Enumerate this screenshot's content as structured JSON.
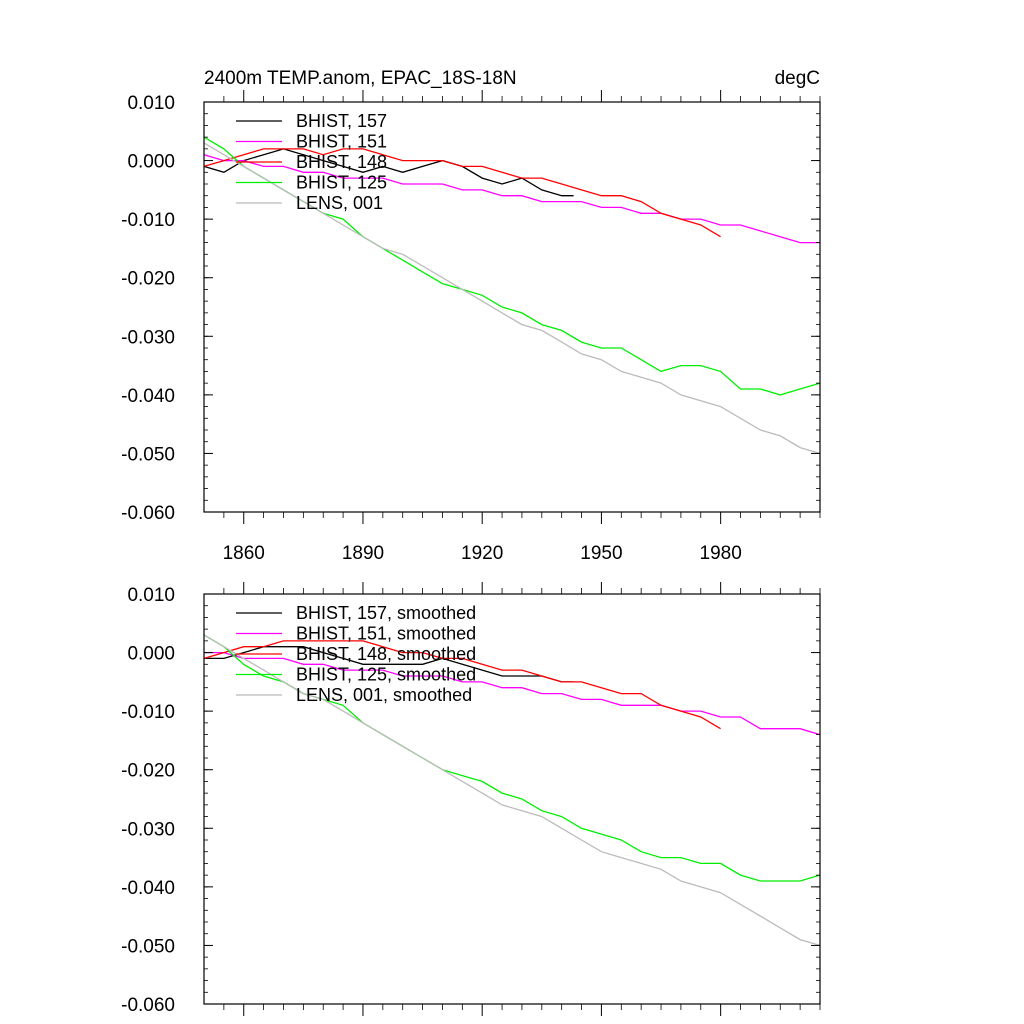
{
  "chart_data": [
    {
      "type": "line",
      "title": "2400m TEMP.anom, EPAC_18S-18N",
      "units": "degC",
      "xlim": [
        1850,
        2005
      ],
      "ylim": [
        -0.06,
        0.01
      ],
      "xticks": [
        1860,
        1890,
        1920,
        1950,
        1980
      ],
      "xtick_labels": [
        "1860",
        "1890",
        "1920",
        "1950",
        "1980"
      ],
      "yticks": [
        0.01,
        0.0,
        -0.01,
        -0.02,
        -0.03,
        -0.04,
        -0.05,
        -0.06
      ],
      "ytick_labels": [
        "0.010",
        "0.000",
        "-0.010",
        "-0.020",
        "-0.030",
        "-0.040",
        "-0.050",
        "-0.060"
      ],
      "legend_position": "top-left",
      "series": [
        {
          "name": "BHIST, 157",
          "color": "#000000",
          "x": [
            1850,
            1855,
            1860,
            1865,
            1870,
            1875,
            1880,
            1885,
            1890,
            1895,
            1900,
            1905,
            1910,
            1915,
            1920,
            1925,
            1930,
            1935,
            1940,
            1943
          ],
          "y": [
            -0.001,
            -0.002,
            0.0,
            0.001,
            0.002,
            0.001,
            0.0,
            -0.001,
            -0.002,
            -0.001,
            -0.002,
            -0.001,
            0.0,
            -0.001,
            -0.003,
            -0.004,
            -0.003,
            -0.005,
            -0.006,
            -0.006
          ]
        },
        {
          "name": "BHIST, 151",
          "color": "#ff00ff",
          "x": [
            1850,
            1855,
            1860,
            1865,
            1870,
            1875,
            1880,
            1885,
            1890,
            1895,
            1900,
            1905,
            1910,
            1915,
            1920,
            1925,
            1930,
            1935,
            1940,
            1945,
            1950,
            1955,
            1960,
            1965,
            1970,
            1975,
            1980,
            1985,
            1990,
            1995,
            2000,
            2005
          ],
          "y": [
            0.001,
            0.0,
            0.0,
            -0.001,
            -0.001,
            -0.002,
            -0.002,
            -0.003,
            -0.003,
            -0.003,
            -0.004,
            -0.004,
            -0.004,
            -0.005,
            -0.005,
            -0.006,
            -0.006,
            -0.007,
            -0.007,
            -0.007,
            -0.008,
            -0.008,
            -0.009,
            -0.009,
            -0.01,
            -0.01,
            -0.011,
            -0.011,
            -0.012,
            -0.013,
            -0.014,
            -0.014
          ]
        },
        {
          "name": "BHIST, 148",
          "color": "#ff0000",
          "x": [
            1850,
            1855,
            1860,
            1865,
            1870,
            1875,
            1880,
            1885,
            1890,
            1895,
            1900,
            1905,
            1910,
            1915,
            1920,
            1925,
            1930,
            1935,
            1940,
            1945,
            1950,
            1955,
            1960,
            1965,
            1970,
            1975,
            1980
          ],
          "y": [
            -0.001,
            0.0,
            0.001,
            0.002,
            0.002,
            0.002,
            0.001,
            0.002,
            0.002,
            0.001,
            0.0,
            0.0,
            0.0,
            -0.001,
            -0.001,
            -0.002,
            -0.003,
            -0.003,
            -0.004,
            -0.005,
            -0.006,
            -0.006,
            -0.007,
            -0.009,
            -0.01,
            -0.011,
            -0.013
          ]
        },
        {
          "name": "BHIST, 125",
          "color": "#00ee00",
          "x": [
            1850,
            1855,
            1860,
            1865,
            1870,
            1875,
            1880,
            1885,
            1890,
            1895,
            1900,
            1905,
            1910,
            1915,
            1920,
            1925,
            1930,
            1935,
            1940,
            1945,
            1950,
            1955,
            1960,
            1965,
            1970,
            1975,
            1980,
            1985,
            1990,
            1995,
            2000,
            2005
          ],
          "y": [
            0.004,
            0.002,
            -0.001,
            -0.003,
            -0.005,
            -0.007,
            -0.009,
            -0.01,
            -0.013,
            -0.015,
            -0.017,
            -0.019,
            -0.021,
            -0.022,
            -0.023,
            -0.025,
            -0.026,
            -0.028,
            -0.029,
            -0.031,
            -0.032,
            -0.032,
            -0.034,
            -0.036,
            -0.035,
            -0.035,
            -0.036,
            -0.039,
            -0.039,
            -0.04,
            -0.039,
            -0.038
          ]
        },
        {
          "name": "LENS, 001",
          "color": "#bbbbbb",
          "x": [
            1850,
            1855,
            1860,
            1865,
            1870,
            1875,
            1880,
            1885,
            1890,
            1895,
            1900,
            1905,
            1910,
            1915,
            1920,
            1925,
            1930,
            1935,
            1940,
            1945,
            1950,
            1955,
            1960,
            1965,
            1970,
            1975,
            1980,
            1985,
            1990,
            1995,
            2000,
            2005
          ],
          "y": [
            0.003,
            0.001,
            -0.001,
            -0.003,
            -0.005,
            -0.007,
            -0.009,
            -0.011,
            -0.013,
            -0.015,
            -0.016,
            -0.018,
            -0.02,
            -0.022,
            -0.024,
            -0.026,
            -0.028,
            -0.029,
            -0.031,
            -0.033,
            -0.034,
            -0.036,
            -0.037,
            -0.038,
            -0.04,
            -0.041,
            -0.042,
            -0.044,
            -0.046,
            -0.047,
            -0.049,
            -0.05
          ]
        }
      ]
    },
    {
      "type": "line",
      "xlim": [
        1850,
        2005
      ],
      "ylim": [
        -0.06,
        0.01
      ],
      "xticks": [
        1860,
        1890,
        1920,
        1950,
        1980
      ],
      "yticks": [
        0.01,
        0.0,
        -0.01,
        -0.02,
        -0.03,
        -0.04,
        -0.05,
        -0.06
      ],
      "ytick_labels": [
        "0.010",
        "0.000",
        "-0.010",
        "-0.020",
        "-0.030",
        "-0.040",
        "-0.050",
        "-0.060"
      ],
      "legend_position": "top-left",
      "series": [
        {
          "name": "BHIST, 157, smoothed",
          "color": "#000000",
          "x": [
            1850,
            1855,
            1860,
            1865,
            1870,
            1875,
            1880,
            1885,
            1890,
            1895,
            1900,
            1905,
            1910,
            1915,
            1920,
            1925,
            1930,
            1935,
            1940,
            1943
          ],
          "y": [
            -0.001,
            -0.001,
            0.0,
            0.001,
            0.001,
            0.001,
            0.0,
            -0.001,
            -0.002,
            -0.002,
            -0.002,
            -0.002,
            -0.001,
            -0.002,
            -0.003,
            -0.004,
            -0.004,
            -0.004,
            -0.005,
            -0.005
          ]
        },
        {
          "name": "BHIST, 151, smoothed",
          "color": "#ff00ff",
          "x": [
            1850,
            1855,
            1860,
            1865,
            1870,
            1875,
            1880,
            1885,
            1890,
            1895,
            1900,
            1905,
            1910,
            1915,
            1920,
            1925,
            1930,
            1935,
            1940,
            1945,
            1950,
            1955,
            1960,
            1965,
            1970,
            1975,
            1980,
            1985,
            1990,
            1995,
            2000,
            2005
          ],
          "y": [
            0.0,
            0.0,
            -0.001,
            -0.001,
            -0.001,
            -0.002,
            -0.002,
            -0.003,
            -0.003,
            -0.003,
            -0.004,
            -0.004,
            -0.004,
            -0.005,
            -0.005,
            -0.006,
            -0.006,
            -0.007,
            -0.007,
            -0.008,
            -0.008,
            -0.009,
            -0.009,
            -0.009,
            -0.01,
            -0.01,
            -0.011,
            -0.011,
            -0.013,
            -0.013,
            -0.013,
            -0.014
          ]
        },
        {
          "name": "BHIST, 148, smoothed",
          "color": "#ff0000",
          "x": [
            1850,
            1855,
            1860,
            1865,
            1870,
            1875,
            1880,
            1885,
            1890,
            1895,
            1900,
            1905,
            1910,
            1915,
            1920,
            1925,
            1930,
            1935,
            1940,
            1945,
            1950,
            1955,
            1960,
            1965,
            1970,
            1975,
            1980
          ],
          "y": [
            -0.001,
            0.0,
            0.001,
            0.001,
            0.002,
            0.002,
            0.002,
            0.002,
            0.002,
            0.001,
            0.0,
            0.0,
            -0.001,
            -0.001,
            -0.002,
            -0.003,
            -0.003,
            -0.004,
            -0.005,
            -0.005,
            -0.006,
            -0.007,
            -0.007,
            -0.009,
            -0.01,
            -0.011,
            -0.013
          ]
        },
        {
          "name": "BHIST, 125, smoothed",
          "color": "#00ee00",
          "x": [
            1850,
            1855,
            1860,
            1865,
            1870,
            1875,
            1880,
            1885,
            1890,
            1895,
            1900,
            1905,
            1910,
            1915,
            1920,
            1925,
            1930,
            1935,
            1940,
            1945,
            1950,
            1955,
            1960,
            1965,
            1970,
            1975,
            1980,
            1985,
            1990,
            1995,
            2000,
            2005
          ],
          "y": [
            0.003,
            0.001,
            -0.002,
            -0.004,
            -0.005,
            -0.007,
            -0.008,
            -0.009,
            -0.012,
            -0.014,
            -0.016,
            -0.018,
            -0.02,
            -0.021,
            -0.022,
            -0.024,
            -0.025,
            -0.027,
            -0.028,
            -0.03,
            -0.031,
            -0.032,
            -0.034,
            -0.035,
            -0.035,
            -0.036,
            -0.036,
            -0.038,
            -0.039,
            -0.039,
            -0.039,
            -0.038
          ]
        },
        {
          "name": "LENS, 001, smoothed",
          "color": "#bbbbbb",
          "x": [
            1850,
            1855,
            1860,
            1865,
            1870,
            1875,
            1880,
            1885,
            1890,
            1895,
            1900,
            1905,
            1910,
            1915,
            1920,
            1925,
            1930,
            1935,
            1940,
            1945,
            1950,
            1955,
            1960,
            1965,
            1970,
            1975,
            1980,
            1985,
            1990,
            1995,
            2000,
            2005
          ],
          "y": [
            0.003,
            0.001,
            -0.001,
            -0.003,
            -0.005,
            -0.007,
            -0.008,
            -0.01,
            -0.012,
            -0.014,
            -0.016,
            -0.018,
            -0.02,
            -0.022,
            -0.024,
            -0.026,
            -0.027,
            -0.028,
            -0.03,
            -0.032,
            -0.034,
            -0.035,
            -0.036,
            -0.037,
            -0.039,
            -0.04,
            -0.041,
            -0.043,
            -0.045,
            -0.047,
            -0.049,
            -0.05
          ]
        }
      ]
    }
  ]
}
